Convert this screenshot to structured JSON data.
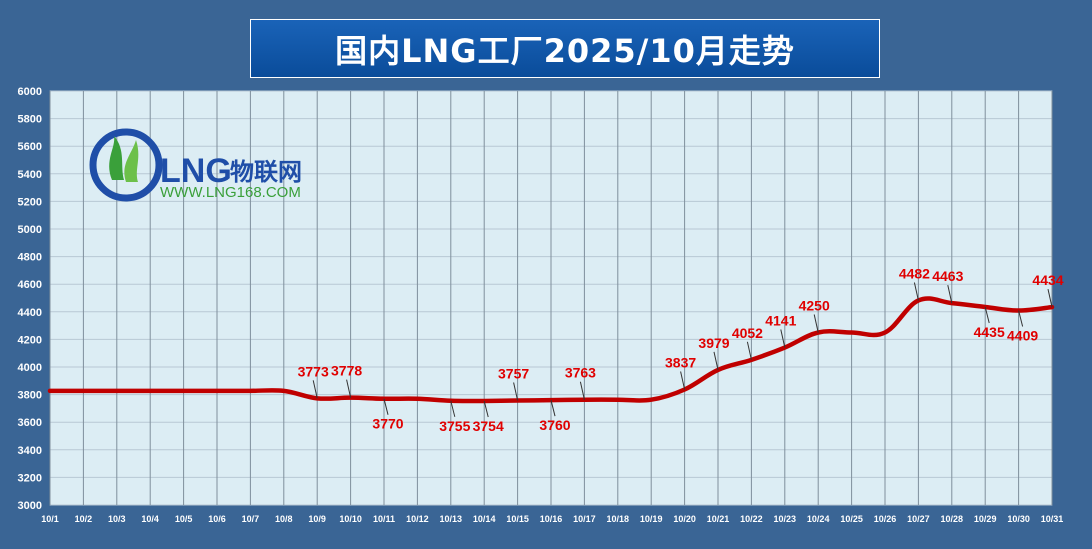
{
  "chart_data": {
    "type": "line",
    "title": "国内LNG工厂2025/10月走势",
    "categories": [
      "10/1",
      "10/2",
      "10/3",
      "10/4",
      "10/5",
      "10/6",
      "10/7",
      "10/8",
      "10/9",
      "10/10",
      "10/11",
      "10/12",
      "10/13",
      "10/14",
      "10/15",
      "10/16",
      "10/17",
      "10/18",
      "10/19",
      "10/20",
      "10/21",
      "10/22",
      "10/23",
      "10/24",
      "10/25",
      "10/26",
      "10/27",
      "10/28",
      "10/29",
      "10/30",
      "10/31"
    ],
    "series": [
      {
        "values": [
          3827,
          3827,
          3827,
          3827,
          3827,
          3827,
          3827,
          3827,
          3773,
          3778,
          3770,
          3770,
          3755,
          3754,
          3757,
          3760,
          3763,
          3763,
          3763,
          3837,
          3979,
          4052,
          4141,
          4250,
          4250,
          4250,
          4482,
          4463,
          4435,
          4409,
          4434
        ],
        "color": "#c00000"
      }
    ],
    "labels": [
      {
        "i": 8,
        "text": "3773",
        "pos": "above"
      },
      {
        "i": 9,
        "text": "3778",
        "pos": "above"
      },
      {
        "i": 10,
        "text": "3770",
        "pos": "below"
      },
      {
        "i": 12,
        "text": "3755",
        "pos": "below"
      },
      {
        "i": 13,
        "text": "3754",
        "pos": "below"
      },
      {
        "i": 14,
        "text": "3757",
        "pos": "above"
      },
      {
        "i": 15,
        "text": "3760",
        "pos": "below"
      },
      {
        "i": 16,
        "text": "3763",
        "pos": "above"
      },
      {
        "i": 19,
        "text": "3837",
        "pos": "above"
      },
      {
        "i": 20,
        "text": "3979",
        "pos": "above"
      },
      {
        "i": 21,
        "text": "4052",
        "pos": "above"
      },
      {
        "i": 22,
        "text": "4141",
        "pos": "above"
      },
      {
        "i": 23,
        "text": "4250",
        "pos": "above"
      },
      {
        "i": 26,
        "text": "4482",
        "pos": "above"
      },
      {
        "i": 27,
        "text": "4463",
        "pos": "above"
      },
      {
        "i": 28,
        "text": "4435",
        "pos": "below"
      },
      {
        "i": 29,
        "text": "4409",
        "pos": "below"
      },
      {
        "i": 30,
        "text": "4434",
        "pos": "above"
      }
    ],
    "ylim": [
      3000,
      6000
    ],
    "yticks": [
      "3000",
      "3200",
      "3400",
      "3600",
      "3800",
      "4000",
      "4200",
      "4400",
      "4600",
      "4800",
      "5000",
      "5200",
      "5400",
      "5600",
      "5800",
      "6000"
    ],
    "xlabel": "",
    "ylabel": "",
    "grid": true
  },
  "logo": {
    "brand": "LNG",
    "brand_cn": "物联网",
    "url": "WWW.LNG168.COM"
  },
  "colors": {
    "background": "#3a6595",
    "plot": "#dcedf4",
    "line": "#c00000",
    "label": "#e00000"
  }
}
